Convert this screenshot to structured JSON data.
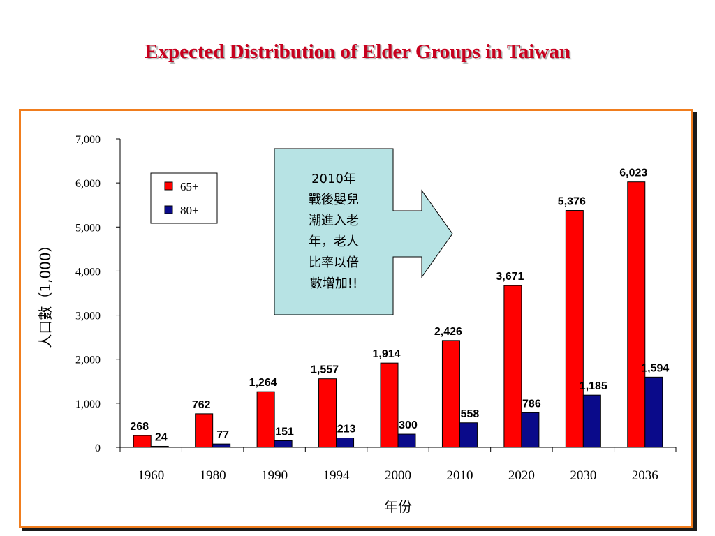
{
  "title": "Expected Distribution of Elder Groups in Taiwan",
  "colors": {
    "title": "#c8001e",
    "frame": "#f07d1e",
    "series_65": "#ff0000",
    "series_80": "#0a0a8a",
    "callout_fill": "#b7e3e4"
  },
  "callout": {
    "lines": [
      "2010年",
      "戰後嬰兒",
      "潮進入老",
      "年，老人",
      "比率以倍",
      "數增加!!"
    ]
  },
  "chart_data": {
    "type": "bar",
    "categories": [
      "1960",
      "1980",
      "1990",
      "1994",
      "2000",
      "2010",
      "2020",
      "2030",
      "2036"
    ],
    "series": [
      {
        "name": "65+",
        "values": [
          268,
          762,
          1264,
          1557,
          1914,
          2426,
          3671,
          5376,
          6023
        ],
        "labels": [
          "268",
          "762",
          "1,264",
          "1,557",
          "1,914",
          "2,426",
          "3,671",
          "5,376",
          "6,023"
        ]
      },
      {
        "name": "80+",
        "values": [
          24,
          77,
          151,
          213,
          300,
          558,
          786,
          1185,
          1594
        ],
        "labels": [
          "24",
          "77",
          "151",
          "213",
          "300",
          "558",
          "786",
          "1,185",
          "1,594"
        ]
      }
    ],
    "xlabel": "年份",
    "ylabel": "人口數（1,000）",
    "ylim": [
      0,
      7000
    ],
    "yticks": [
      0,
      1000,
      2000,
      3000,
      4000,
      5000,
      6000,
      7000
    ],
    "ytick_labels": [
      "0",
      "1,000",
      "2,000",
      "3,000",
      "4,000",
      "5,000",
      "6,000",
      "7,000"
    ],
    "grid": false,
    "legend_position": "top-left"
  }
}
